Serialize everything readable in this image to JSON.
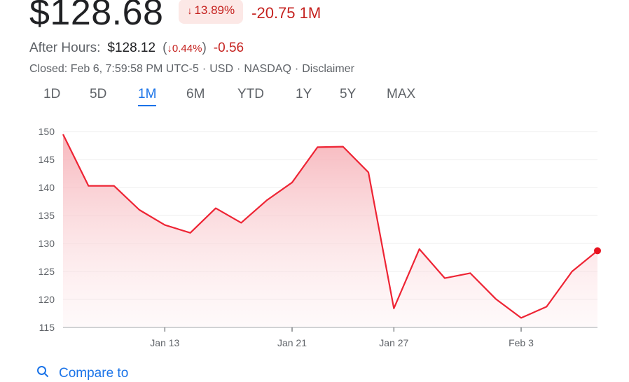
{
  "quote": {
    "price": "$128.68",
    "change_pct": "13.89%",
    "change_abs": "-20.75 1M",
    "down_arrow": "↓"
  },
  "after_hours": {
    "label": "After Hours:",
    "price": "$128.12",
    "pct_open": "(",
    "pct": "↓0.44%",
    "pct_close": ")",
    "change": "-0.56"
  },
  "meta": {
    "closed": "Closed: Feb 6, 7:59:58 PM UTC-5",
    "currency": "USD",
    "exchange": "NASDAQ",
    "disclaimer": "Disclaimer",
    "separator": "·"
  },
  "tabs": [
    {
      "label": "1D"
    },
    {
      "label": "5D"
    },
    {
      "label": "1M",
      "active": true
    },
    {
      "label": "6M"
    },
    {
      "label": "YTD"
    },
    {
      "label": "1Y"
    },
    {
      "label": "5Y"
    },
    {
      "label": "MAX"
    }
  ],
  "compare": {
    "label": "Compare to",
    "icon": "search-icon"
  },
  "colors": {
    "down": "#c5221f",
    "line": "#ee2434",
    "accent": "#1a73e8"
  },
  "chart_data": {
    "type": "line",
    "y_ticks": [
      150,
      145,
      140,
      135,
      130,
      125,
      120,
      115
    ],
    "ylim": [
      115,
      150
    ],
    "x_ticks": [
      {
        "label": "Jan 13",
        "i": 4
      },
      {
        "label": "Jan 21",
        "i": 9
      },
      {
        "label": "Jan 27",
        "i": 13
      },
      {
        "label": "Feb 3",
        "i": 18
      }
    ],
    "series": [
      {
        "values": [
          149.5,
          140.3,
          140.3,
          136.0,
          133.3,
          131.9,
          136.3,
          133.7,
          137.7,
          140.9,
          147.2,
          147.3,
          142.7,
          118.4,
          129.0,
          123.8,
          124.7,
          120.1,
          116.7,
          118.7,
          125.0,
          128.7
        ]
      }
    ],
    "grid": true,
    "legend": "none"
  }
}
